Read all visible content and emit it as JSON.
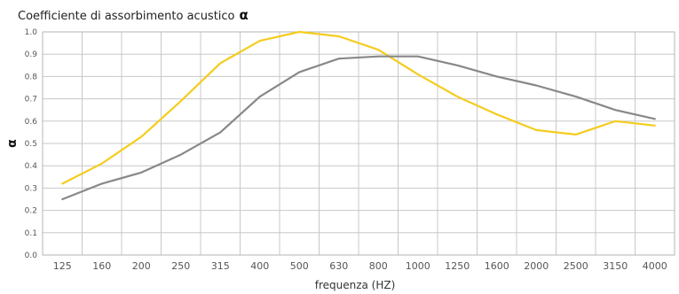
{
  "chart_data": {
    "type": "line",
    "title": "Coefficiente di assorbimento acustico",
    "title_symbol": "α",
    "xlabel": "frequenza (HZ)",
    "ylabel": "α",
    "categories": [
      "125",
      "160",
      "200",
      "250",
      "315",
      "400",
      "500",
      "630",
      "800",
      "1000",
      "1250",
      "1600",
      "2000",
      "2500",
      "3150",
      "4000"
    ],
    "x_tick_labels": [
      "125",
      "160",
      "200",
      "250",
      "315",
      "400",
      "500",
      "630",
      "800",
      "1000",
      "1250",
      "1600",
      "2000",
      "2500",
      "3150",
      "4000"
    ],
    "y_tick_labels": [
      "0.0",
      "0.1",
      "0.2",
      "0.3",
      "0.4",
      "0.5",
      "0.6",
      "0.7",
      "0.8",
      "0.9",
      "1.0"
    ],
    "ylim": [
      0,
      1.0
    ],
    "grid": true,
    "series": [
      {
        "color": "#f5cc1f",
        "values": [
          0.32,
          0.41,
          0.53,
          0.69,
          0.86,
          0.96,
          1.0,
          0.98,
          0.92,
          0.81,
          0.71,
          0.63,
          0.56,
          0.54,
          0.6,
          0.58
        ]
      },
      {
        "color": "#888888",
        "values": [
          0.25,
          0.32,
          0.37,
          0.45,
          0.55,
          0.71,
          0.82,
          0.88,
          0.89,
          0.89,
          0.85,
          0.8,
          0.76,
          0.71,
          0.65,
          0.61
        ]
      }
    ]
  }
}
